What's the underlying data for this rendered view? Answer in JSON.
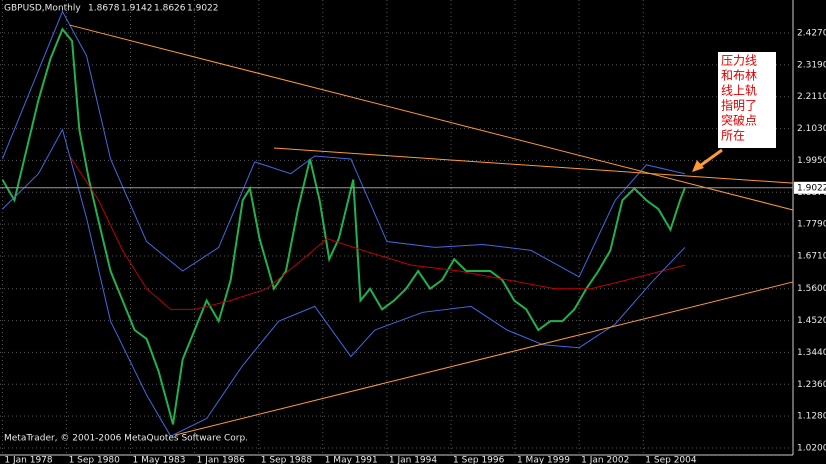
{
  "chart_data": {
    "type": "line",
    "title": "GBPUSD,Monthly",
    "ohlc": {
      "open": 1.8678,
      "high": 1.9142,
      "low": 1.8626,
      "close": 1.9022
    },
    "last_price": 1.9022,
    "copyright": "MetaTrader, © 2001-2006 MetaQuotes Software Corp.",
    "annotation": [
      "压力线",
      "和布林",
      "线上轨",
      "指明了",
      "突破点",
      "所在"
    ],
    "grid": true,
    "xlim": [
      1977.9,
      2010.9
    ],
    "ylim": [
      0.986,
      2.539
    ],
    "xticks": [
      {
        "value": 1978.0,
        "label": "1 Jan 1978"
      },
      {
        "value": 1980.67,
        "label": "1 Sep 1980"
      },
      {
        "value": 1983.33,
        "label": "1 May 1983"
      },
      {
        "value": 1986.0,
        "label": "1 Jan 1986"
      },
      {
        "value": 1988.67,
        "label": "1 Sep 1988"
      },
      {
        "value": 1991.33,
        "label": "1 May 1991"
      },
      {
        "value": 1994.0,
        "label": "1 Jan 1994"
      },
      {
        "value": 1996.67,
        "label": "1 Sep 1996"
      },
      {
        "value": 1999.33,
        "label": "1 May 1999"
      },
      {
        "value": 2002.0,
        "label": "1 Jan 2002"
      },
      {
        "value": 2004.67,
        "label": "1 Sep 2004"
      }
    ],
    "yticks": [
      {
        "value": 1.02,
        "label": "1.0200"
      },
      {
        "value": 1.128,
        "label": "1.1280"
      },
      {
        "value": 1.236,
        "label": "1.2360"
      },
      {
        "value": 1.344,
        "label": "1.3440"
      },
      {
        "value": 1.452,
        "label": "1.4520"
      },
      {
        "value": 1.56,
        "label": "1.5600"
      },
      {
        "value": 1.671,
        "label": "1.6710"
      },
      {
        "value": 1.779,
        "label": "1.7790"
      },
      {
        "value": 1.887,
        "label": "1.8870"
      },
      {
        "value": 1.995,
        "label": "1.9950"
      },
      {
        "value": 2.103,
        "label": "2.1030"
      },
      {
        "value": 2.211,
        "label": "2.2110"
      },
      {
        "value": 2.319,
        "label": "2.3190"
      },
      {
        "value": 2.427,
        "label": "2.4270"
      }
    ],
    "series": [
      {
        "color": "#22b14c",
        "x": [
          1978.0,
          1978.5,
          1979.0,
          1979.5,
          1980.0,
          1980.5,
          1980.9,
          1981.2,
          1981.6,
          1982.0,
          1982.5,
          1983.0,
          1983.5,
          1984.0,
          1984.5,
          1985.1,
          1985.5,
          1986.0,
          1986.5,
          1987.0,
          1987.5,
          1988.0,
          1988.3,
          1988.7,
          1989.3,
          1989.8,
          1990.3,
          1990.8,
          1991.2,
          1991.6,
          1992.0,
          1992.6,
          1992.9,
          1993.3,
          1993.8,
          1994.3,
          1994.8,
          1995.3,
          1995.8,
          1996.3,
          1996.8,
          1997.3,
          1997.8,
          1998.3,
          1998.8,
          1999.3,
          1999.8,
          2000.3,
          2000.8,
          2001.3,
          2001.8,
          2002.3,
          2002.8,
          2003.3,
          2003.8,
          2004.3,
          2004.8,
          2005.3,
          2005.8,
          2006.2,
          2006.4
        ],
        "values": [
          1.93,
          1.86,
          2.03,
          2.2,
          2.34,
          2.44,
          2.4,
          2.1,
          1.93,
          1.79,
          1.62,
          1.52,
          1.42,
          1.39,
          1.28,
          1.1,
          1.32,
          1.42,
          1.52,
          1.45,
          1.59,
          1.86,
          1.9,
          1.73,
          1.56,
          1.62,
          1.83,
          2.0,
          1.86,
          1.66,
          1.73,
          1.93,
          1.52,
          1.56,
          1.49,
          1.52,
          1.56,
          1.62,
          1.56,
          1.59,
          1.66,
          1.62,
          1.62,
          1.62,
          1.59,
          1.52,
          1.49,
          1.42,
          1.45,
          1.45,
          1.49,
          1.56,
          1.62,
          1.69,
          1.86,
          1.9,
          1.86,
          1.83,
          1.76,
          1.86,
          1.9022
        ]
      },
      {
        "color": "#c00000",
        "x": [
          1980.8,
          1982.0,
          1983.0,
          1984.0,
          1985.0,
          1986.0,
          1987.5,
          1989.0,
          1990.5,
          1991.5,
          1993.0,
          1995.0,
          1997.0,
          1999.0,
          2001.0,
          2002.5,
          2004.0,
          2006.4
        ],
        "values": [
          2.01,
          1.86,
          1.69,
          1.56,
          1.49,
          1.49,
          1.52,
          1.56,
          1.66,
          1.73,
          1.69,
          1.64,
          1.62,
          1.59,
          1.56,
          1.56,
          1.59,
          1.64
        ]
      },
      {
        "color": "#4169e1",
        "x": [
          1978.0,
          1979.5,
          1980.5,
          1981.5,
          1982.5,
          1984.0,
          1985.5,
          1987.0,
          1988.5,
          1990.0,
          1991.0,
          1992.5,
          1994.0,
          1996.0,
          1998.0,
          2000.0,
          2002.0,
          2003.5,
          2004.8,
          2006.4
        ],
        "values": [
          2.0,
          2.3,
          2.5,
          2.35,
          2.0,
          1.72,
          1.62,
          1.7,
          1.99,
          1.95,
          2.01,
          2.0,
          1.72,
          1.7,
          1.71,
          1.69,
          1.6,
          1.86,
          1.98,
          1.95
        ]
      },
      {
        "color": "#4169e1",
        "x": [
          1978.0,
          1979.5,
          1980.5,
          1981.5,
          1982.5,
          1984.0,
          1985.0,
          1986.5,
          1988.0,
          1989.5,
          1991.0,
          1992.5,
          1993.5,
          1995.5,
          1997.5,
          1999.0,
          2000.5,
          2002.0,
          2003.5,
          2005.0,
          2006.4
        ],
        "values": [
          1.83,
          1.95,
          2.1,
          1.8,
          1.45,
          1.2,
          1.06,
          1.12,
          1.3,
          1.45,
          1.5,
          1.33,
          1.42,
          1.48,
          1.5,
          1.42,
          1.37,
          1.36,
          1.44,
          1.58,
          1.7
        ]
      },
      {
        "color": "#ff9933",
        "x": [
          1980.8,
          2010.9
        ],
        "values": [
          2.454,
          1.827
        ]
      },
      {
        "color": "#ff9933",
        "x": [
          1985.2,
          2010.9
        ],
        "values": [
          1.064,
          1.583
        ]
      },
      {
        "color": "#ff9933",
        "x": [
          1989.3,
          2010.9
        ],
        "values": [
          2.037,
          1.918
        ]
      }
    ]
  }
}
